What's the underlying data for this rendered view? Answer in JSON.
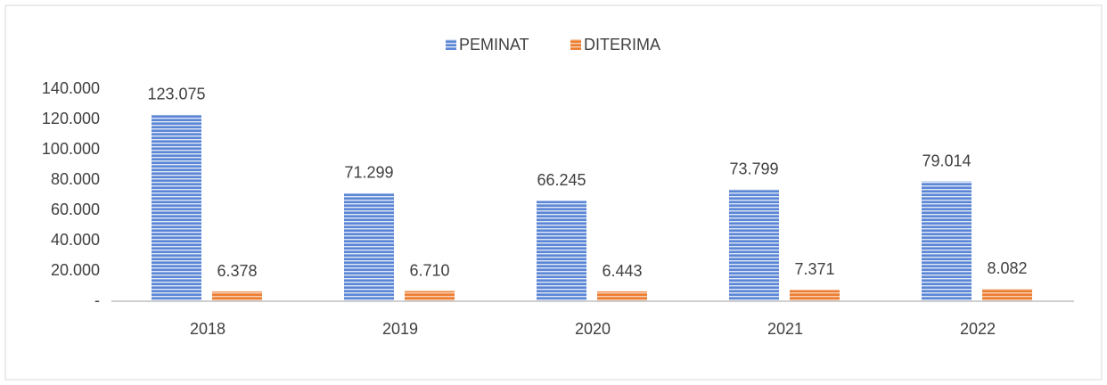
{
  "chart_data": {
    "type": "bar",
    "categories": [
      "2018",
      "2019",
      "2020",
      "2021",
      "2022"
    ],
    "series": [
      {
        "name": "PEMINAT",
        "color": "#4472c4",
        "values": [
          123075,
          71299,
          66245,
          73799,
          79014
        ],
        "value_labels": [
          "123.075",
          "71.299",
          "66.245",
          "73.799",
          "79.014"
        ]
      },
      {
        "name": "DITERIMA",
        "color": "#ed7d31",
        "values": [
          6378,
          6710,
          6443,
          7371,
          8082
        ],
        "value_labels": [
          "6.378",
          "6.710",
          "6.443",
          "7.371",
          "8.082"
        ]
      }
    ],
    "ylim": [
      0,
      140000
    ],
    "yticks": [
      {
        "value": 0,
        "label": "-"
      },
      {
        "value": 20000,
        "label": "20.000"
      },
      {
        "value": 40000,
        "label": "40.000"
      },
      {
        "value": 60000,
        "label": "60.000"
      },
      {
        "value": 80000,
        "label": "80.000"
      },
      {
        "value": 100000,
        "label": "100.000"
      },
      {
        "value": 120000,
        "label": "120.000"
      },
      {
        "value": 140000,
        "label": "140.000"
      }
    ],
    "legend": "top",
    "grid": false
  }
}
